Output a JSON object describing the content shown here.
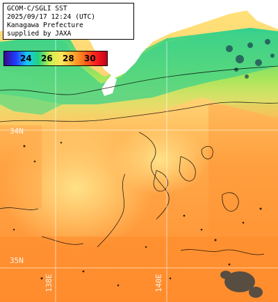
{
  "title": {
    "lines": [
      "GCOM-C/SGLI SST",
      "2025/09/17 12:24 (UTC)",
      "Kanagawa Prefecture",
      "supplied by JAXA"
    ]
  },
  "colorbar": {
    "min": 22,
    "max": 32,
    "ticks": [
      "24",
      "26",
      "28",
      "30"
    ],
    "colors": [
      "#3a0a8a",
      "#1e3cff",
      "#18c8ff",
      "#22d27a",
      "#c8f050",
      "#ffe65a",
      "#ffb030",
      "#ff6a1a",
      "#ff2020",
      "#c00018"
    ]
  },
  "grid": {
    "lat_labels": [
      "34N",
      "35N"
    ],
    "lon_labels": [
      "138E",
      "140E"
    ]
  },
  "palette": {
    "land": "#ffffff",
    "cold_coast": "#3ccf85",
    "cool": "#b8e860",
    "mid": "#ffe06a",
    "warm": "#ffb04a",
    "hot": "#ff8a2a",
    "contour": "#000000",
    "grid_line": "#ffffff"
  }
}
